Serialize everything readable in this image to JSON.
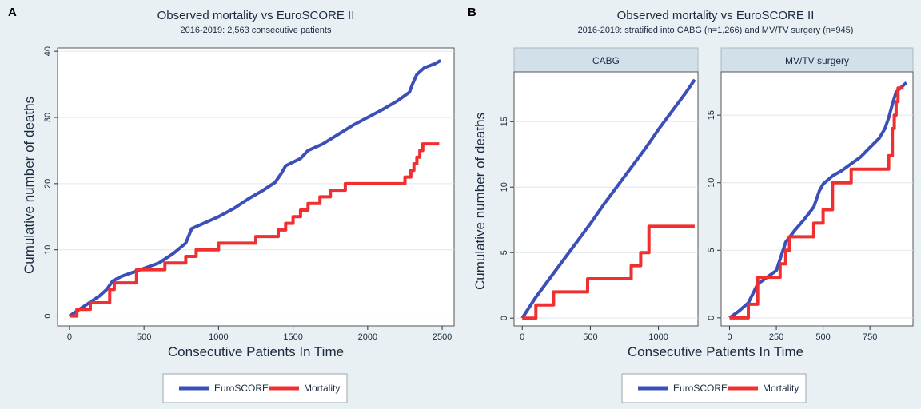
{
  "panel_letters": [
    "A",
    "B"
  ],
  "colors": {
    "euroscore": "#3a4fb8",
    "mortality": "#f03030",
    "plot_bg": "#ffffff",
    "figure_bg": "#e9f0f3",
    "strip_bg": "#d2e0ea",
    "grid": "#dde6ec"
  },
  "chart_data": [
    {
      "type": "line",
      "title": "Observed mortality vs EuroSCORE II",
      "subtitle": "2016-2019: 2,563 consecutive patients",
      "xlabel": "Consecutive Patients In Time",
      "ylabel": "Cumulative number of deaths",
      "xlim": [
        -80,
        2580
      ],
      "ylim": [
        -1.5,
        40.5
      ],
      "xticks": [
        0,
        500,
        1000,
        1500,
        2000,
        2500
      ],
      "yticks": [
        0,
        10,
        20,
        30,
        40
      ],
      "grid": true,
      "legend": {
        "placement": "bottom",
        "entries": [
          "EuroSCORE",
          "Mortality"
        ]
      },
      "series": [
        {
          "name": "EuroSCORE",
          "step": false,
          "x": [
            0,
            100,
            200,
            250,
            290,
            350,
            450,
            600,
            700,
            780,
            820,
            900,
            1000,
            1100,
            1200,
            1300,
            1380,
            1420,
            1450,
            1550,
            1600,
            1700,
            1800,
            1900,
            2000,
            2100,
            2200,
            2280,
            2300,
            2330,
            2380,
            2450,
            2490
          ],
          "y": [
            0,
            1.5,
            3,
            4,
            5.3,
            6,
            6.8,
            8,
            9.5,
            11,
            13.2,
            14,
            15,
            16.2,
            17.7,
            19,
            20.2,
            21.5,
            22.7,
            23.8,
            25,
            26,
            27.4,
            28.8,
            30,
            31.2,
            32.5,
            33.8,
            35,
            36.5,
            37.5,
            38.1,
            38.6
          ]
        },
        {
          "name": "Mortality",
          "step": true,
          "x": [
            0,
            50,
            140,
            270,
            300,
            450,
            640,
            780,
            850,
            1000,
            1250,
            1400,
            1450,
            1500,
            1550,
            1600,
            1680,
            1750,
            1850,
            2250,
            2290,
            2310,
            2330,
            2350,
            2370,
            2480
          ],
          "y": [
            0,
            1,
            2,
            4,
            5,
            7,
            8,
            9,
            10,
            11,
            12,
            13,
            14,
            15,
            16,
            17,
            18,
            19,
            20,
            21,
            22,
            23,
            24,
            25,
            26,
            26
          ]
        }
      ]
    },
    {
      "type": "line",
      "title": "Observed mortality vs EuroSCORE II",
      "subtitle": "2016-2019: stratified into CABG (n=1,266) and MV/TV surgery (n=945)",
      "xlabel": "Consecutive Patients In Time",
      "ylabel": "Cumulative number of deaths",
      "grid": true,
      "legend": {
        "placement": "bottom",
        "entries": [
          "EuroSCORE",
          "Mortality"
        ]
      },
      "facets": [
        {
          "label": "CABG",
          "xlim": [
            -60,
            1290
          ],
          "ylim": [
            -0.6,
            18.8
          ],
          "xticks": [
            0,
            500,
            1000
          ],
          "yticks": [
            0,
            5,
            10,
            15
          ],
          "series": [
            {
              "name": "EuroSCORE",
              "step": false,
              "x": [
                0,
                50,
                100,
                200,
                300,
                400,
                500,
                600,
                700,
                800,
                900,
                1000,
                1100,
                1200,
                1266
              ],
              "y": [
                0,
                0.8,
                1.6,
                3,
                4.4,
                5.8,
                7.2,
                8.7,
                10.1,
                11.5,
                12.9,
                14.4,
                15.8,
                17.2,
                18.2
              ]
            },
            {
              "name": "Mortality",
              "step": true,
              "x": [
                0,
                100,
                230,
                480,
                800,
                870,
                930,
                1266
              ],
              "y": [
                0,
                1,
                2,
                3,
                4,
                5,
                7,
                7
              ]
            }
          ]
        },
        {
          "label": "MV/TV surgery",
          "xlim": [
            -45,
            980
          ],
          "ylim": [
            -0.6,
            18.2
          ],
          "xticks": [
            0,
            250,
            500,
            750
          ],
          "yticks": [
            0,
            5,
            10,
            15
          ],
          "series": [
            {
              "name": "EuroSCORE",
              "step": false,
              "x": [
                0,
                50,
                100,
                150,
                200,
                250,
                300,
                350,
                400,
                450,
                480,
                500,
                550,
                600,
                650,
                700,
                750,
                800,
                830,
                850,
                870,
                890,
                920,
                945
              ],
              "y": [
                0,
                0.5,
                1.1,
                2.5,
                3,
                3.5,
                5.6,
                6.5,
                7.3,
                8.2,
                9.4,
                9.9,
                10.5,
                10.9,
                11.4,
                11.9,
                12.6,
                13.3,
                14,
                14.8,
                15.8,
                16.7,
                17.1,
                17.4
              ]
            },
            {
              "name": "Mortality",
              "step": true,
              "x": [
                0,
                100,
                150,
                270,
                300,
                320,
                450,
                500,
                550,
                650,
                850,
                870,
                880,
                890,
                900,
                930
              ],
              "y": [
                0,
                1,
                3,
                4,
                5,
                6,
                7,
                8,
                10,
                11,
                12,
                14,
                15,
                16,
                17,
                17
              ]
            }
          ]
        }
      ]
    }
  ]
}
